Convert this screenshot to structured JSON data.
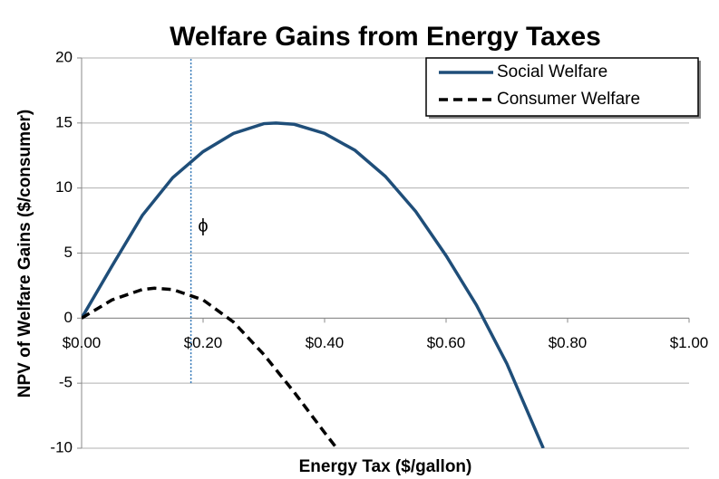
{
  "chart_data": {
    "type": "line",
    "title": "Welfare Gains from Energy Taxes",
    "x_label": "Energy Tax ($/gallon)",
    "y_label": "NPV of Welfare Gains  ($/consumer)",
    "xlim": [
      0,
      1
    ],
    "ylim": [
      -10,
      20
    ],
    "xticks": [
      {
        "value": 0,
        "label": "$0.00"
      },
      {
        "value": 0.2,
        "label": "$0.20"
      },
      {
        "value": 0.4,
        "label": "$0.40"
      },
      {
        "value": 0.6,
        "label": "$0.60"
      },
      {
        "value": 0.8,
        "label": "$0.80"
      },
      {
        "value": 1,
        "label": "$1.00"
      }
    ],
    "yticks": [
      20,
      15,
      10,
      5,
      0,
      -5,
      -10
    ],
    "grid": true,
    "legend": "top-right",
    "series": [
      {
        "name": "Social Welfare",
        "color": "#1f4e79",
        "dash": "solid",
        "x": [
          0,
          0.02,
          0.05,
          0.1,
          0.15,
          0.2,
          0.25,
          0.3,
          0.32,
          0.35,
          0.4,
          0.45,
          0.5,
          0.55,
          0.6,
          0.65,
          0.7,
          0.76
        ],
        "values": [
          0,
          1.6,
          4,
          7.9,
          10.8,
          12.8,
          14.2,
          14.95,
          15,
          14.9,
          14.2,
          12.9,
          10.9,
          8.2,
          4.8,
          1,
          -3.5,
          -10
        ]
      },
      {
        "name": "Consumer Welfare",
        "color": "#000000",
        "dash": "dashed",
        "x": [
          0,
          0.05,
          0.1,
          0.12,
          0.15,
          0.2,
          0.25,
          0.3,
          0.35,
          0.4,
          0.42
        ],
        "values": [
          0,
          1.4,
          2.2,
          2.3,
          2.2,
          1.4,
          -0.3,
          -2.8,
          -5.7,
          -8.8,
          -10
        ]
      }
    ],
    "reference_line": {
      "x": 0.18,
      "ymin": -5,
      "ymax": 20,
      "color": "#2e75b6"
    },
    "annotation": {
      "text": "ϕ",
      "x": 0.2,
      "y": 7
    }
  }
}
